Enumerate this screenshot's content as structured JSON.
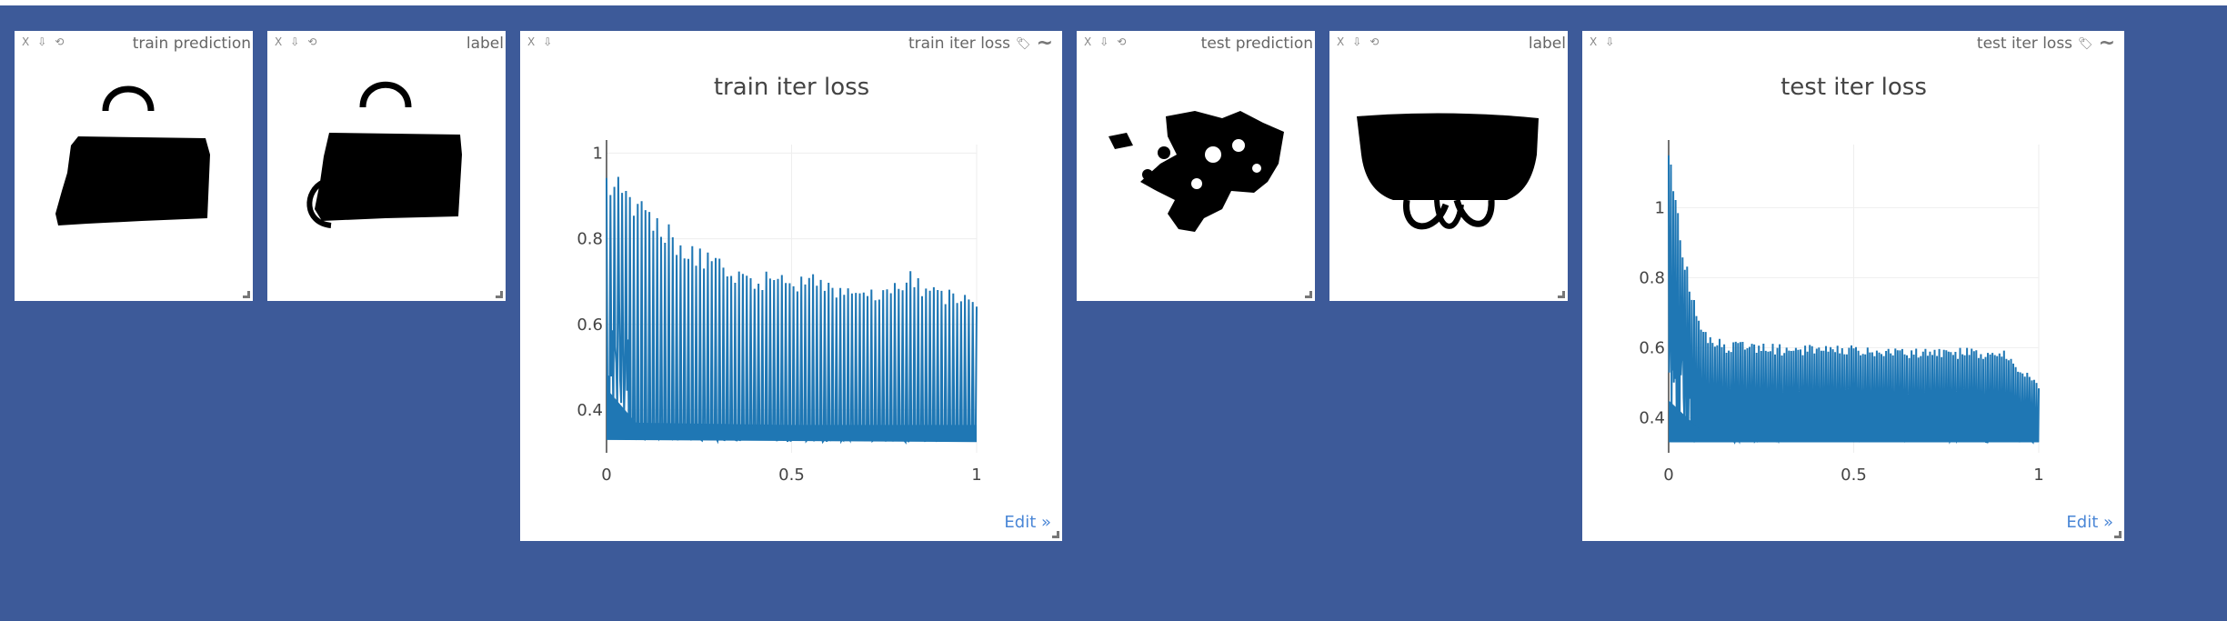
{
  "panes": [
    {
      "id": "train-prediction",
      "title": "train prediction",
      "controls": [
        "X",
        "⇩",
        "⟲"
      ]
    },
    {
      "id": "train-label",
      "title": "label",
      "controls": [
        "X",
        "⇩",
        "⟲"
      ]
    },
    {
      "id": "train-iter-loss",
      "title": "train iter loss",
      "controls": [
        "X",
        "⇩"
      ],
      "edit": "Edit »"
    },
    {
      "id": "test-prediction",
      "title": "test prediction",
      "controls": [
        "X",
        "⇩",
        "⟲"
      ]
    },
    {
      "id": "test-label",
      "title": "label",
      "controls": [
        "X",
        "⇩",
        "⟲"
      ]
    },
    {
      "id": "test-iter-loss",
      "title": "test iter loss",
      "controls": [
        "X",
        "⇩"
      ],
      "edit": "Edit »"
    }
  ],
  "icons": {
    "tag": "tag-icon",
    "smooth": "wave-icon",
    "resize": "resize-handle-icon"
  },
  "colors": {
    "background": "#3d5a99",
    "series": "#1f77b4",
    "edit_link": "#4a86d6"
  },
  "chart_data": [
    {
      "type": "line",
      "title": "train iter loss",
      "xlim": [
        0,
        1
      ],
      "ylim": [
        0.3,
        1.02
      ],
      "x_ticks": [
        "0",
        "0.5",
        "1"
      ],
      "y_ticks": [
        "0.4",
        "0.6",
        "0.8",
        "1"
      ],
      "y_tick_values": [
        0.4,
        0.6,
        0.8,
        1.0
      ],
      "x_tick_values": [
        0,
        0.5,
        1
      ],
      "grid": true,
      "series": [
        {
          "color": "#1f77b4",
          "peak_envelope": [
            [
              0,
              0.98
            ],
            [
              0.02,
              0.96
            ],
            [
              0.05,
              0.93
            ],
            [
              0.1,
              0.9
            ],
            [
              0.15,
              0.85
            ],
            [
              0.2,
              0.81
            ],
            [
              0.25,
              0.78
            ],
            [
              0.3,
              0.76
            ],
            [
              0.35,
              0.74
            ],
            [
              0.4,
              0.73
            ],
            [
              0.45,
              0.725
            ],
            [
              0.5,
              0.72
            ],
            [
              0.55,
              0.72
            ],
            [
              0.6,
              0.71
            ],
            [
              0.65,
              0.7
            ],
            [
              0.7,
              0.7
            ],
            [
              0.75,
              0.695
            ],
            [
              0.8,
              0.71
            ],
            [
              0.82,
              0.73
            ],
            [
              0.85,
              0.7
            ],
            [
              0.9,
              0.69
            ],
            [
              0.95,
              0.685
            ],
            [
              1.0,
              0.67
            ]
          ],
          "floor_envelope": [
            [
              0,
              0.33
            ],
            [
              0.1,
              0.33
            ],
            [
              0.5,
              0.325
            ],
            [
              1.0,
              0.325
            ]
          ],
          "spike_count": 95
        }
      ]
    },
    {
      "type": "line",
      "title": "test iter loss",
      "xlim": [
        0,
        1
      ],
      "ylim": [
        0.3,
        1.18
      ],
      "x_ticks": [
        "0",
        "0.5",
        "1"
      ],
      "y_ticks": [
        "0.4",
        "0.6",
        "0.8",
        "1"
      ],
      "y_tick_values": [
        0.4,
        0.6,
        0.8,
        1.0
      ],
      "x_tick_values": [
        0,
        0.5,
        1
      ],
      "grid": true,
      "series": [
        {
          "color": "#1f77b4",
          "peak_envelope": [
            [
              0,
              1.15
            ],
            [
              0.01,
              1.12
            ],
            [
              0.02,
              1.05
            ],
            [
              0.03,
              0.95
            ],
            [
              0.05,
              0.85
            ],
            [
              0.07,
              0.75
            ],
            [
              0.1,
              0.65
            ],
            [
              0.15,
              0.62
            ],
            [
              0.3,
              0.61
            ],
            [
              0.5,
              0.61
            ],
            [
              0.7,
              0.6
            ],
            [
              0.9,
              0.6
            ],
            [
              1.0,
              0.5
            ]
          ],
          "floor_envelope": [
            [
              0,
              0.33
            ],
            [
              1.0,
              0.33
            ]
          ],
          "spike_count": 160
        }
      ]
    }
  ]
}
